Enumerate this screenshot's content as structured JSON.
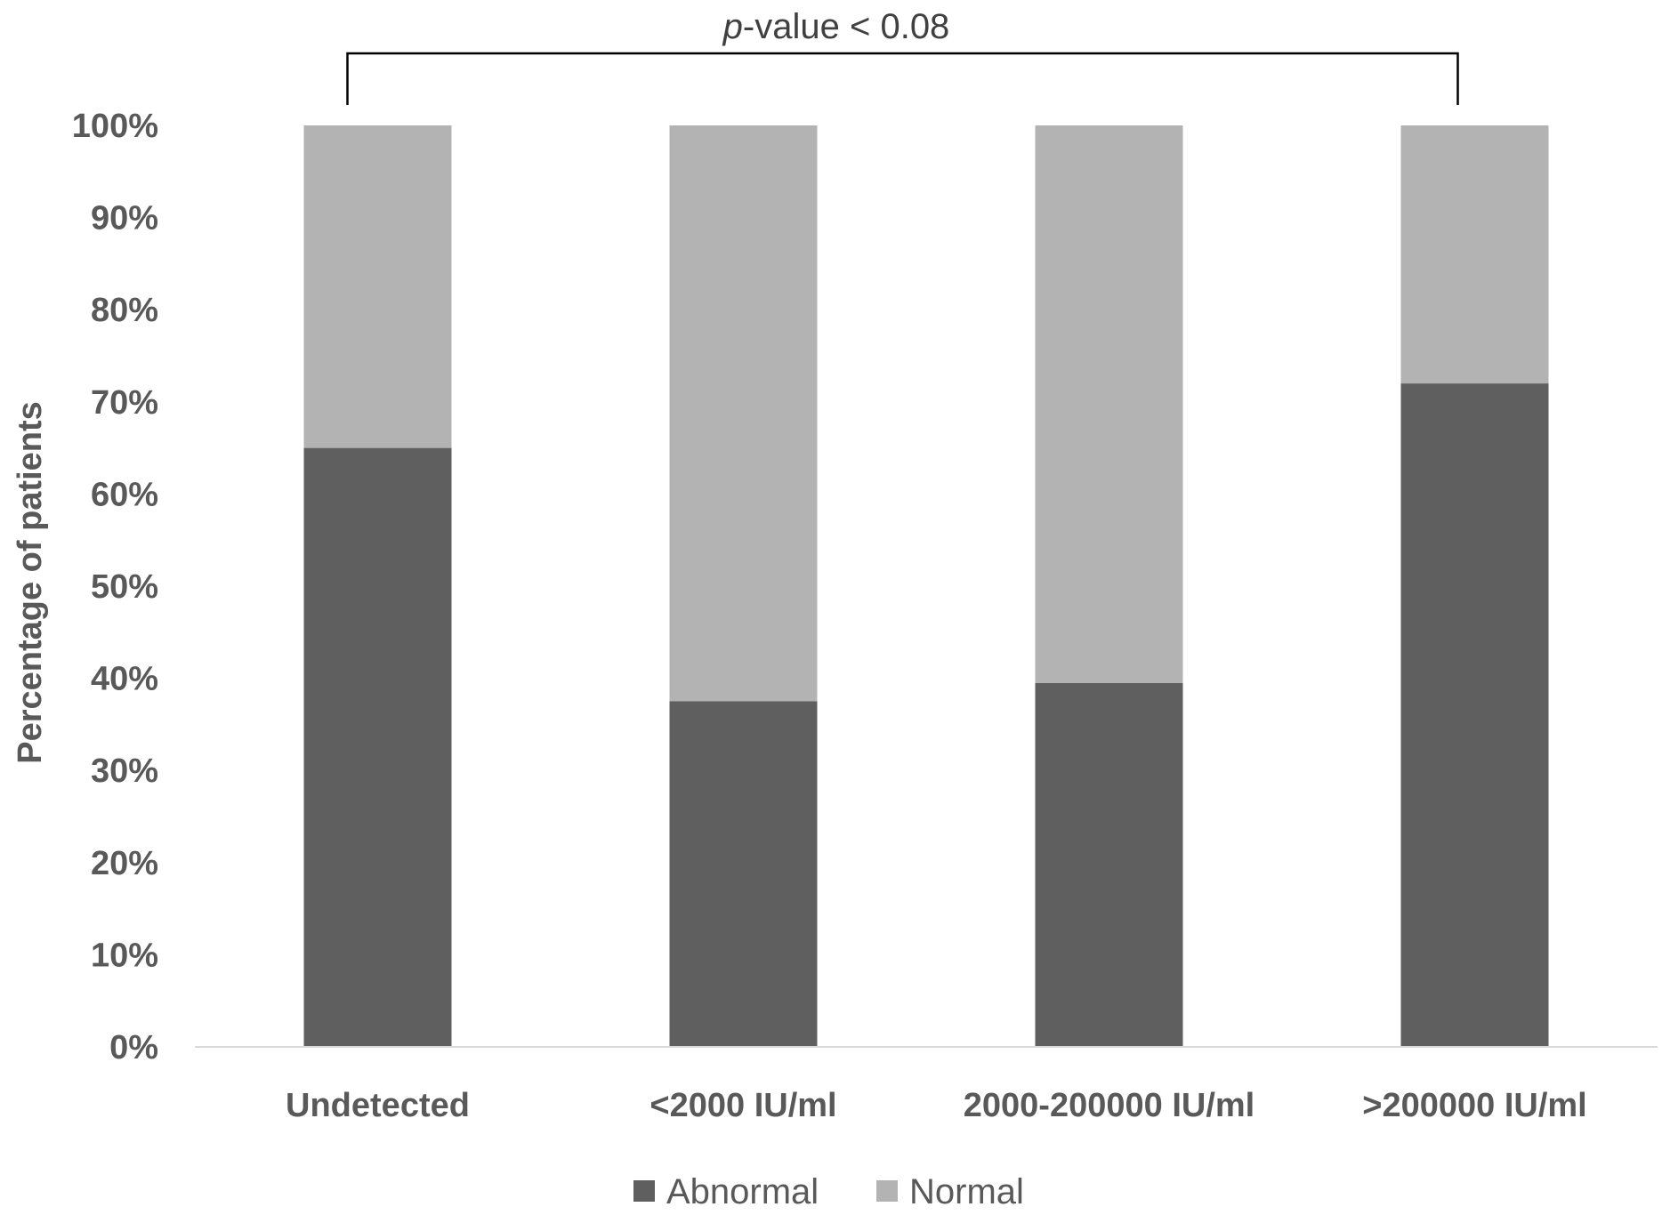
{
  "chart_data": {
    "type": "bar",
    "stacked": true,
    "categories": [
      "Undetected",
      "<2000 IU/ml",
      "2000-200000 IU/ml",
      ">200000 IU/ml"
    ],
    "series": [
      {
        "name": "Abnormal",
        "values": [
          65,
          37.5,
          39.5,
          72
        ],
        "color": "#5f5f5f"
      },
      {
        "name": "Normal",
        "values": [
          35,
          62.5,
          60.5,
          28
        ],
        "color": "#b3b3b3"
      }
    ],
    "ylabel": "Percentage of patients",
    "xlabel": "",
    "ylim": [
      0,
      100
    ],
    "yticks": [
      "0%",
      "10%",
      "20%",
      "30%",
      "40%",
      "50%",
      "60%",
      "70%",
      "80%",
      "90%",
      "100%"
    ],
    "grid": false,
    "legend_position": "bottom",
    "annotation": {
      "italic": "p",
      "text": "-value < 0.08",
      "from_category": "Undetected",
      "to_category": ">200000 IU/ml"
    }
  }
}
